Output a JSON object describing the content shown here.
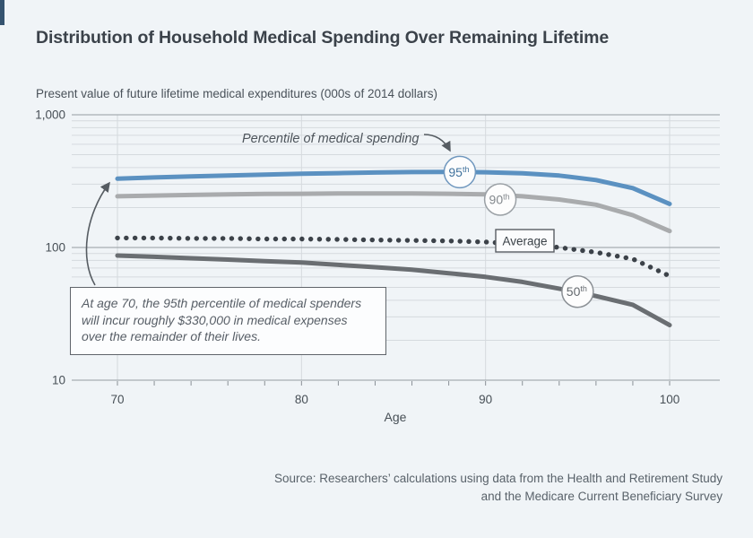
{
  "page": {
    "title": "Distribution of Household Medical Spending Over Remaining Lifetime",
    "subtitle": "Present value of future lifetime medical expenditures (000s of 2014 dollars)",
    "source_lines": [
      "Source: Researchers’ calculations using data from the Health and Retirement Study",
      "and the Medicare Current Beneficiary Survey"
    ],
    "accent_bar_color": "#35536f",
    "background_color": "#f0f4f7"
  },
  "annotation": {
    "lines": [
      "At age 70, the 95th percentile of medical spenders",
      "will incur roughly $330,000 in medical expenses",
      "over the remainder of their lives."
    ]
  },
  "chart_data": {
    "type": "line",
    "title": "Distribution of Household Medical Spending Over Remaining Lifetime",
    "xlabel": "Age",
    "ylabel": "Present value of future lifetime medical expenditures (000s of 2014 dollars)",
    "x_scale": "linear",
    "y_scale": "log",
    "xlim": [
      70,
      100
    ],
    "ylim": [
      10,
      1000
    ],
    "x_ticks": [
      70,
      80,
      90,
      100
    ],
    "x_minor_tick_step": 2,
    "y_ticks": [
      {
        "label": "1,000",
        "value": 1000
      },
      {
        "label": "100",
        "value": 100
      },
      {
        "label": "10",
        "value": 10
      }
    ],
    "grid": "horizontal log minor+major lines; vertical lines at decade ages",
    "legend_position": "inline badges on lines",
    "x": [
      70,
      72,
      74,
      76,
      78,
      80,
      82,
      84,
      86,
      88,
      90,
      92,
      94,
      96,
      98,
      100
    ],
    "series": [
      {
        "name": "95th percentile",
        "style": "solid",
        "color": "#5b91c1",
        "values": [
          330,
          337,
          343,
          349,
          354,
          359,
          363,
          367,
          370,
          371,
          369,
          362,
          348,
          322,
          280,
          213
        ]
      },
      {
        "name": "90th percentile",
        "style": "solid",
        "color": "#a9abad",
        "values": [
          243,
          246,
          249,
          251,
          253,
          254,
          255,
          255,
          255,
          254,
          251,
          243,
          230,
          210,
          175,
          133
        ]
      },
      {
        "name": "Average",
        "style": "dotted",
        "color": "#3c4249",
        "values": [
          118,
          118,
          117,
          117,
          116,
          116,
          115,
          114,
          113,
          112,
          110,
          106,
          100,
          92,
          82,
          61
        ]
      },
      {
        "name": "50th percentile",
        "style": "solid",
        "color": "#6a6e72",
        "values": [
          87,
          85,
          83,
          81,
          79,
          77,
          74,
          71,
          68,
          64,
          60,
          55,
          49,
          43,
          37,
          26
        ]
      }
    ],
    "badges": [
      {
        "label": "95",
        "sup": "th",
        "age": 88.6,
        "value": 370,
        "text_color": "#40729d",
        "border_color": "#6f97be"
      },
      {
        "label": "90",
        "sup": "th",
        "age": 90.8,
        "value": 230,
        "text_color": "#83888d",
        "border_color": "#9aa0a5"
      },
      {
        "label": "50",
        "sup": "th",
        "age": 95.0,
        "value": 46.5,
        "text_color": "#64696e",
        "border_color": "#8b9095"
      }
    ],
    "average_label": "Average",
    "percentile_callout": "Percentile of medical spending",
    "annotation_text": "At age 70, the 95th percentile of medical spenders will incur roughly $330,000 in medical expenses over the remainder of their lives."
  }
}
